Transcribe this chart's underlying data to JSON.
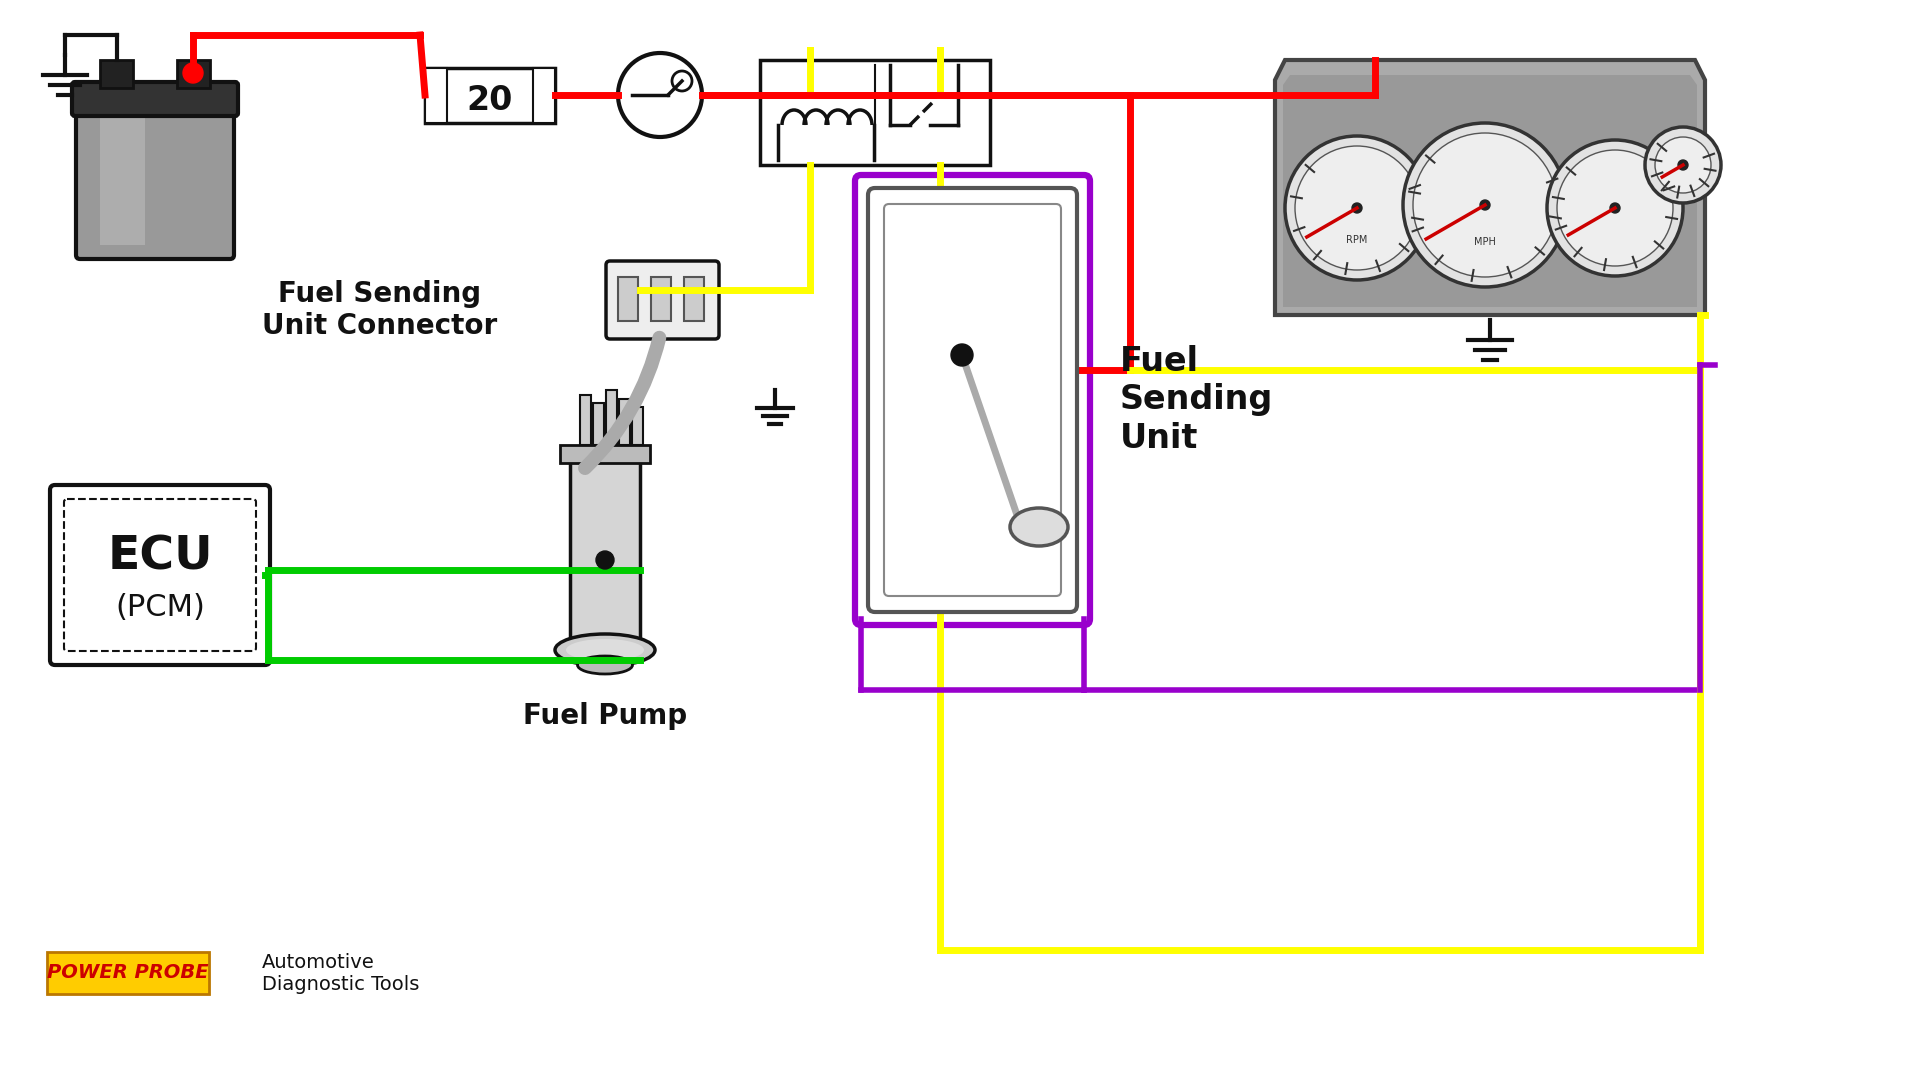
{
  "bg_color": "#ffffff",
  "wire_red": "#ff0000",
  "wire_yellow": "#ffff00",
  "wire_green": "#00cc00",
  "wire_black": "#111111",
  "wire_purple": "#9900cc",
  "wire_lw": 5,
  "label_fuel_sending_connector": "Fuel Sending\nUnit Connector",
  "label_fuel_pump": "Fuel Pump",
  "label_fuel_sending_unit": "Fuel\nSending\nUnit",
  "label_ecu": "ECU",
  "label_pcm": "(PCM)",
  "label_fuse_num": "20",
  "brand_text": "POWER PROBE",
  "subtitle_text": "Automotive\nDiagnostic Tools"
}
